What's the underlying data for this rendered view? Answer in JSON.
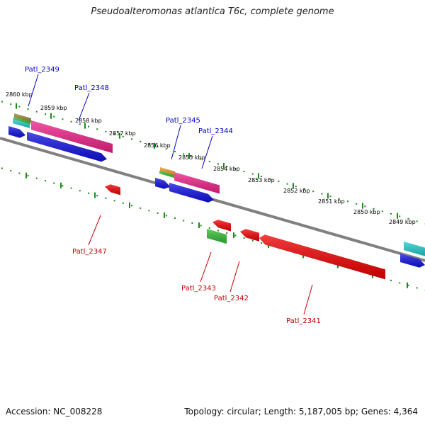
{
  "title": "Pseudoalteromonas atlantica T6c, complete genome",
  "footer": {
    "accession": "Accession: NC_008228",
    "summary": "Topology: circular; Length: 5,187,005 bp; Genes: 4,364"
  },
  "colors": {
    "backbone": "#808080",
    "tick": "#1a8a1a",
    "forward_label": "#0000c0",
    "reverse_label": "#c00000",
    "cds_forward": "#1010e0",
    "cds_reverse": "#ee0000",
    "cog_pink": "#ee2288",
    "cog_cyan": "#22cccc",
    "cog_green": "#33bb33",
    "cog_orange": "#ee9922",
    "cog_olive": "#998833"
  },
  "ticks": [
    {
      "label": "2860 kbp"
    },
    {
      "label": "2859 kbp"
    },
    {
      "label": "2858 kbp"
    },
    {
      "label": "2857 kbp"
    },
    {
      "label": "2856 kbp"
    },
    {
      "label": "2855 kbp"
    },
    {
      "label": "2854 kbp"
    },
    {
      "label": "2853 kbp"
    },
    {
      "label": "2852 kbp"
    },
    {
      "label": "2851 kbp"
    },
    {
      "label": "2850 kbp"
    },
    {
      "label": "2849 kbp"
    }
  ],
  "genes_forward": [
    {
      "name": "Patl_2349"
    },
    {
      "name": "Patl_2348"
    },
    {
      "name": "Patl_2345"
    },
    {
      "name": "Patl_2344"
    }
  ],
  "genes_reverse": [
    {
      "name": "Patl_2347"
    },
    {
      "name": "Patl_2343"
    },
    {
      "name": "Patl_2342"
    },
    {
      "name": "Patl_2341"
    }
  ]
}
